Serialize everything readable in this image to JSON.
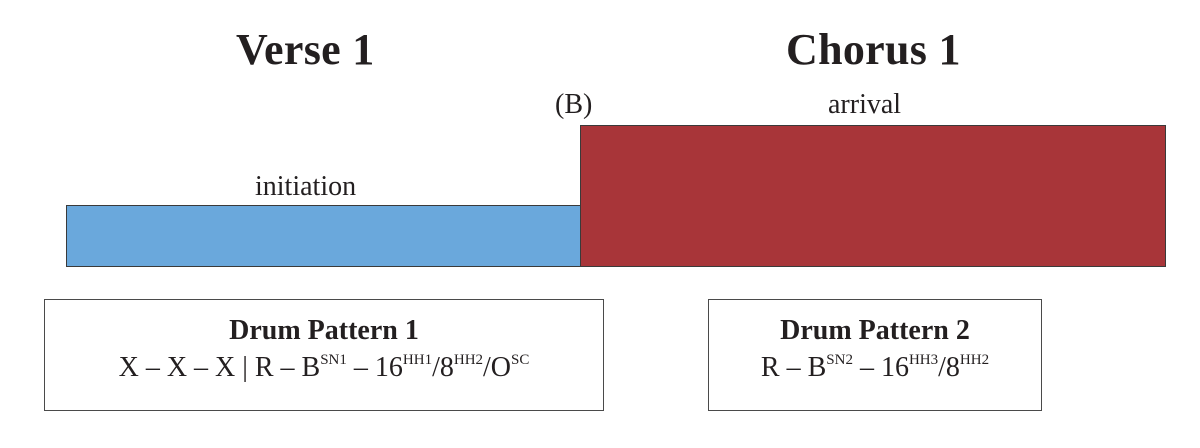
{
  "sections": {
    "verse_title": "Verse 1",
    "chorus_title": "Chorus 1"
  },
  "labels": {
    "marker": "(B)",
    "arrival": "arrival",
    "initiation": "initiation"
  },
  "colors": {
    "initiation_bar": "#6aa8dc",
    "arrival_bar": "#a83539"
  },
  "pattern1": {
    "title": "Drum Pattern 1",
    "formula": {
      "prefix": "X – X – X | R – B",
      "sup_sn": "SN1",
      "dash": " – 16",
      "sup_hh_a": "HH1",
      "slash_a": "/8",
      "sup_hh_b": "HH2",
      "slash_b": "/O",
      "sup_sc": "SC"
    }
  },
  "pattern2": {
    "title": "Drum Pattern 2",
    "formula": {
      "prefix": "R – B",
      "sup_sn": "SN2",
      "dash": " – 16",
      "sup_hh_a": "HH3",
      "slash_a": "/8",
      "sup_hh_b": "HH2"
    }
  }
}
